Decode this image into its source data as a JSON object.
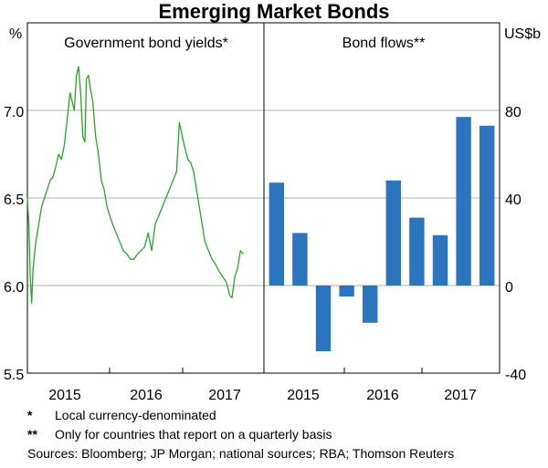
{
  "title": "Emerging Market Bonds",
  "chart_data": [
    {
      "type": "line",
      "title": "Government bond yields*",
      "ylabel": "%",
      "ylim": [
        5.5,
        7.5
      ],
      "yticks": [
        "5.5",
        "6.0",
        "6.5",
        "7.0"
      ],
      "x_ticks": [
        "2015",
        "2016",
        "2017"
      ],
      "xlim": [
        2014.5,
        2017.83
      ],
      "grid": true,
      "color": "#2aa52a",
      "series": [
        {
          "x": [
            2014.5,
            2014.52,
            2014.54,
            2014.56,
            2014.58,
            2014.62,
            2014.66,
            2014.7,
            2014.74,
            2014.78,
            2014.82,
            2014.86,
            2014.9,
            2014.94,
            2014.98,
            2015.02,
            2015.06,
            2015.1,
            2015.13,
            2015.16,
            2015.19,
            2015.22,
            2015.25,
            2015.28,
            2015.31,
            2015.33,
            2015.36,
            2015.39,
            2015.42,
            2015.46,
            2015.5,
            2015.54,
            2015.58,
            2015.62,
            2015.66,
            2015.7,
            2015.75,
            2015.8,
            2015.85,
            2015.9,
            2015.95,
            2016.0,
            2016.05,
            2016.1,
            2016.15,
            2016.2,
            2016.25,
            2016.3,
            2016.35,
            2016.4,
            2016.45,
            2016.5,
            2016.55,
            2016.6,
            2016.64,
            2016.68,
            2016.72,
            2016.76,
            2016.8,
            2016.84,
            2016.88,
            2016.92,
            2016.96,
            2017.0,
            2017.05,
            2017.1,
            2017.15,
            2017.2,
            2017.25,
            2017.3,
            2017.35,
            2017.38,
            2017.42,
            2017.46,
            2017.5,
            2017.54
          ],
          "y": [
            6.5,
            6.35,
            6.05,
            5.9,
            6.1,
            6.25,
            6.35,
            6.45,
            6.5,
            6.55,
            6.6,
            6.62,
            6.68,
            6.75,
            6.72,
            6.8,
            6.95,
            7.1,
            7.05,
            7.0,
            7.2,
            7.25,
            7.1,
            6.85,
            6.82,
            7.18,
            7.2,
            7.12,
            7.05,
            6.85,
            6.75,
            6.6,
            6.55,
            6.45,
            6.4,
            6.35,
            6.3,
            6.25,
            6.2,
            6.18,
            6.15,
            6.15,
            6.18,
            6.2,
            6.22,
            6.3,
            6.2,
            6.35,
            6.4,
            6.45,
            6.5,
            6.55,
            6.6,
            6.65,
            6.93,
            6.85,
            6.78,
            6.72,
            6.7,
            6.65,
            6.55,
            6.45,
            6.35,
            6.25,
            6.2,
            6.15,
            6.12,
            6.08,
            6.05,
            6.02,
            5.94,
            5.93,
            6.05,
            6.1,
            6.2,
            6.18
          ]
        }
      ]
    },
    {
      "type": "bar",
      "title": "Bond flows**",
      "ylabel": "US$b",
      "ylim": [
        -40,
        120
      ],
      "yticks": [
        "-40",
        "0",
        "40",
        "80"
      ],
      "x_ticks": [
        "2015",
        "2016",
        "2017"
      ],
      "grid": true,
      "color": "#2a75be",
      "values": [
        47,
        24,
        -30,
        -5,
        -17,
        48,
        31,
        23,
        77,
        73
      ]
    }
  ],
  "notes": [
    {
      "mark": "*",
      "text": "Local currency-denominated"
    },
    {
      "mark": "**",
      "text": "Only for countries that report on a quarterly basis"
    }
  ],
  "sources": "Sources: Bloomberg; JP Morgan; national sources; RBA; Thomson Reuters"
}
